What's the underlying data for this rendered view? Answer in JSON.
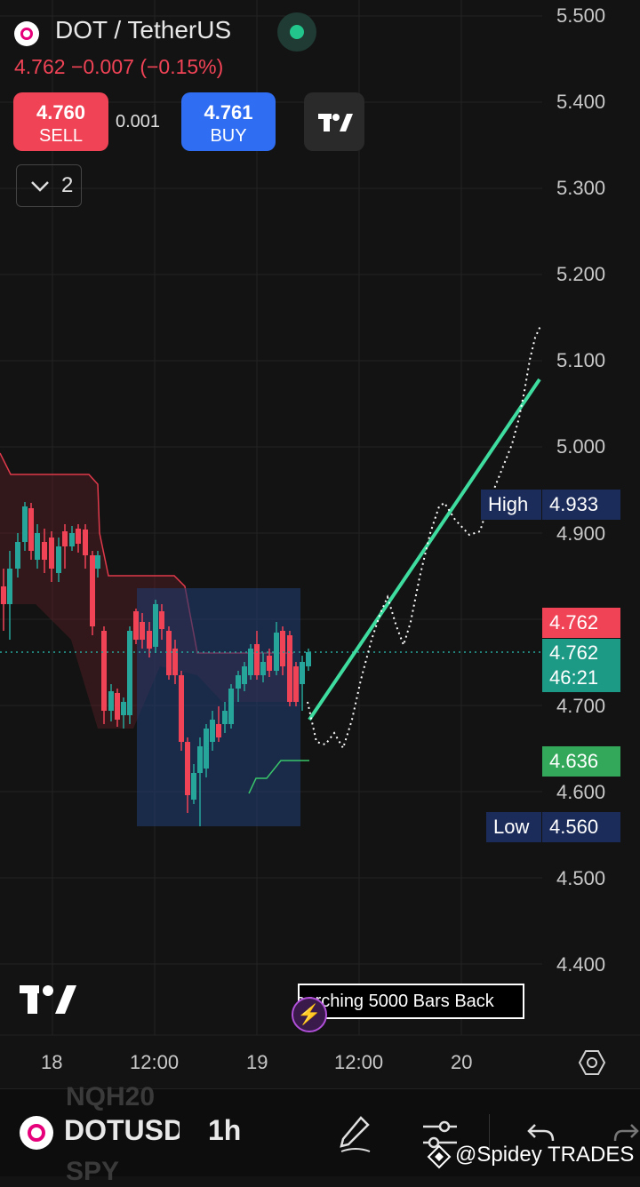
{
  "header": {
    "symbol_title": "DOT / TetherUS",
    "last_line": "4.762  −0.007 (−0.15%)",
    "sell_price": "4.760",
    "sell_label": "SELL",
    "spread": "0.001",
    "buy_price": "4.761",
    "buy_label": "BUY",
    "indicators_count": "2"
  },
  "price_axis": [
    "5.500",
    "5.400",
    "5.300",
    "5.200",
    "5.100",
    "5.000",
    "4.900",
    "4.700",
    "4.600",
    "4.500",
    "4.400"
  ],
  "time_axis": [
    "18",
    "12:00",
    "19",
    "12:00",
    "20"
  ],
  "price_tags": {
    "high_label": "High",
    "high_value": "4.933",
    "low_label": "Low",
    "low_value": "4.560",
    "last_price": "4.762",
    "current_price": "4.762",
    "countdown": "46:21",
    "green_level": "4.636"
  },
  "scanner_text": "Searching 5000 Bars Back",
  "bottom_bar": {
    "ticker": "DOTUSD",
    "interval": "1h",
    "ghost_1": "NQH20",
    "ghost_2": "SPY",
    "watermark": "@Spidey TRADES"
  },
  "colors": {
    "bg": "#131313",
    "up": "#26a69a",
    "down": "#f04356",
    "trend": "#3fdca0",
    "box": "#1f3a6e",
    "blue": "#2f6df3"
  },
  "icons": [
    "polkadot-logo-icon",
    "status-dot-icon",
    "tradingview-logo-icon",
    "chevron-down-icon",
    "lightning-icon",
    "settings-hexagon-icon",
    "pencil-icon",
    "sliders-icon",
    "undo-icon",
    "redo-icon"
  ]
}
